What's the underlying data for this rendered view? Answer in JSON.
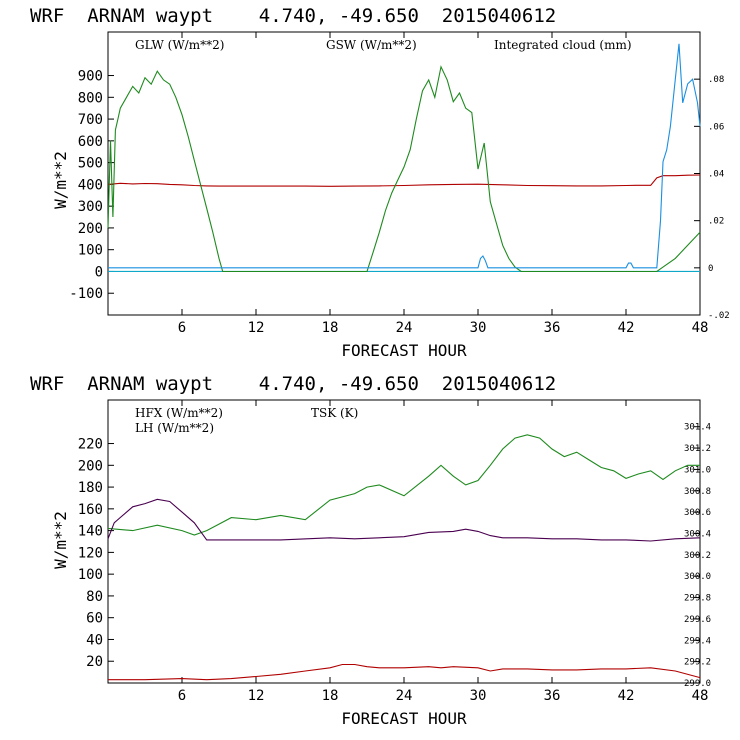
{
  "colors": {
    "red": "#b00000",
    "green": "#1e8a1e",
    "blue": "#1a8fe0",
    "cyan": "#10a8c8",
    "purple": "#4a0050"
  },
  "top": {
    "title": "WRF  ARNAM waypt    4.740, -49.650  2015040612",
    "ylabel": "W/m**2",
    "xlabel": "FORECAST HOUR",
    "legend": {
      "glw": "GLW (W/m**2)",
      "gsw": "GSW (W/m**2)",
      "cloud": "Integrated cloud (mm)"
    }
  },
  "bottom": {
    "title": "WRF  ARNAM waypt    4.740, -49.650  2015040612",
    "ylabel": "W/m**2",
    "xlabel": "FORECAST HOUR",
    "legend": {
      "hfx": "HFX (W/m**2)",
      "lh": "LH  (W/m**2)",
      "tsk": "TSK (K)"
    }
  },
  "chart_data": [
    {
      "type": "line",
      "title": "WRF  ARNAM waypt    4.740, -49.650  2015040612",
      "xlabel": "FORECAST HOUR",
      "ylabel": "W/m**2",
      "xlim": [
        0,
        48
      ],
      "ylim": [
        -200,
        1100
      ],
      "y2lim": [
        -0.02,
        0.1
      ],
      "xticks": [
        6,
        12,
        18,
        24,
        30,
        36,
        42,
        48
      ],
      "yticks": [
        -100,
        0,
        100,
        200,
        300,
        400,
        500,
        600,
        700,
        800,
        900
      ],
      "y2ticks": [
        ".08",
        ".06",
        ".04",
        ".02",
        "0",
        "-.02"
      ],
      "y2tick_values": [
        0.08,
        0.06,
        0.04,
        0.02,
        0,
        -0.02
      ],
      "series": [
        {
          "name": "GLW (W/m**2)",
          "axis": "left",
          "color": "#b00000",
          "x": [
            0,
            1,
            2,
            3,
            4,
            5,
            6,
            7,
            8,
            9,
            10,
            12,
            14,
            16,
            18,
            20,
            22,
            24,
            26,
            28,
            30,
            32,
            34,
            36,
            38,
            40,
            42,
            43,
            44,
            44.5,
            45,
            46,
            47,
            48
          ],
          "y": [
            400,
            405,
            402,
            404,
            403,
            400,
            398,
            395,
            393,
            392,
            392,
            392,
            392,
            392,
            391,
            392,
            393,
            395,
            398,
            400,
            401,
            398,
            395,
            394,
            393,
            393,
            395,
            396,
            396,
            430,
            440,
            440,
            442,
            443
          ]
        },
        {
          "name": "GSW (W/m**2)",
          "axis": "left",
          "color": "#1e8a1e",
          "x": [
            0,
            0.2,
            0.4,
            0.6,
            0.8,
            1,
            1.5,
            2,
            2.5,
            3,
            3.5,
            4,
            4.5,
            5,
            5.5,
            6,
            6.5,
            7,
            7.5,
            8,
            8.5,
            9,
            9.3,
            21,
            21.5,
            22,
            22.5,
            23,
            23.5,
            24,
            24.5,
            25,
            25.5,
            26,
            26.5,
            27,
            27.5,
            28,
            28.5,
            29,
            29.5,
            30,
            30.5,
            31,
            31.5,
            32,
            32.5,
            33,
            33.5,
            44.5,
            45,
            46,
            47,
            48
          ],
          "y": [
            200,
            600,
            250,
            650,
            700,
            750,
            800,
            850,
            820,
            890,
            860,
            920,
            880,
            860,
            800,
            720,
            620,
            510,
            400,
            290,
            180,
            60,
            0,
            0,
            90,
            180,
            280,
            360,
            420,
            480,
            560,
            700,
            830,
            880,
            800,
            940,
            880,
            780,
            820,
            750,
            730,
            470,
            590,
            320,
            220,
            120,
            60,
            20,
            0,
            0,
            20,
            60,
            120,
            180
          ]
        },
        {
          "name": "Integrated cloud (mm)",
          "axis": "right",
          "color": "#1a8fe0",
          "x": [
            0,
            30,
            30.2,
            30.4,
            30.6,
            30.8,
            31,
            42,
            42.2,
            42.4,
            42.6,
            44.5,
            44.8,
            45,
            45.3,
            45.6,
            46,
            46.3,
            46.6,
            47,
            47.4,
            47.8,
            48
          ],
          "y": [
            0,
            0,
            0.004,
            0.005,
            0.003,
            0,
            0,
            0,
            0.002,
            0.002,
            0,
            0,
            0.02,
            0.045,
            0.05,
            0.06,
            0.08,
            0.095,
            0.07,
            0.078,
            0.08,
            0.07,
            0.06
          ]
        }
      ]
    },
    {
      "type": "line",
      "title": "WRF  ARNAM waypt    4.740, -49.650  2015040612",
      "xlabel": "FORECAST HOUR",
      "ylabel": "W/m**2",
      "xlim": [
        0,
        48
      ],
      "ylim": [
        0,
        260
      ],
      "y2lim": [
        299.0,
        301.65
      ],
      "xticks": [
        6,
        12,
        18,
        24,
        30,
        36,
        42,
        48
      ],
      "yticks": [
        20,
        40,
        60,
        80,
        100,
        120,
        140,
        160,
        180,
        200,
        220
      ],
      "y2ticks": [
        "301.4",
        "301.2",
        "301.0",
        "300.8",
        "300.6",
        "300.4",
        "300.2",
        "300.0",
        "299.8",
        "299.6",
        "299.4",
        "299.2",
        "299.0"
      ],
      "y2tick_values": [
        301.4,
        301.2,
        301.0,
        300.8,
        300.6,
        300.4,
        300.2,
        300.0,
        299.8,
        299.6,
        299.4,
        299.2,
        299.0
      ],
      "series": [
        {
          "name": "HFX (W/m**2)",
          "axis": "left",
          "color": "#b00000",
          "x": [
            0,
            3,
            6,
            8,
            10,
            12,
            14,
            16,
            18,
            19,
            20,
            21,
            22,
            24,
            26,
            27,
            28,
            30,
            31,
            32,
            34,
            36,
            38,
            40,
            42,
            44,
            46,
            48
          ],
          "y": [
            3,
            3,
            4,
            3,
            4,
            6,
            8,
            11,
            14,
            17,
            17,
            15,
            14,
            14,
            15,
            14,
            15,
            14,
            11,
            13,
            13,
            12,
            12,
            13,
            13,
            14,
            11,
            5
          ]
        },
        {
          "name": "LH  (W/m**2)",
          "axis": "left",
          "color": "#1e8a1e",
          "x": [
            0,
            2,
            4,
            6,
            7,
            8,
            9,
            10,
            12,
            14,
            16,
            18,
            20,
            21,
            22,
            24,
            26,
            27,
            28,
            29,
            30,
            31,
            32,
            33,
            34,
            35,
            36,
            37,
            38,
            39,
            40,
            41,
            42,
            43,
            44,
            45,
            46,
            47,
            48
          ],
          "y": [
            142,
            140,
            145,
            140,
            136,
            140,
            146,
            152,
            150,
            154,
            150,
            168,
            174,
            180,
            182,
            172,
            190,
            200,
            190,
            182,
            186,
            200,
            215,
            225,
            228,
            225,
            215,
            208,
            212,
            205,
            198,
            195,
            188,
            192,
            195,
            187,
            195,
            200,
            200
          ]
        },
        {
          "name": "TSK (K)",
          "axis": "right",
          "color": "#4a0050",
          "x": [
            0,
            0.5,
            1,
            2,
            3,
            4,
            5,
            6,
            7,
            8,
            10,
            14,
            18,
            20,
            22,
            24,
            26,
            28,
            29,
            30,
            31,
            32,
            34,
            36,
            38,
            40,
            42,
            44,
            46,
            48
          ],
          "y": [
            300.35,
            300.5,
            300.55,
            300.65,
            300.68,
            300.72,
            300.7,
            300.6,
            300.5,
            300.34,
            300.34,
            300.34,
            300.36,
            300.35,
            300.36,
            300.37,
            300.41,
            300.42,
            300.44,
            300.42,
            300.38,
            300.36,
            300.36,
            300.35,
            300.35,
            300.34,
            300.34,
            300.33,
            300.35,
            300.36
          ]
        }
      ]
    }
  ]
}
